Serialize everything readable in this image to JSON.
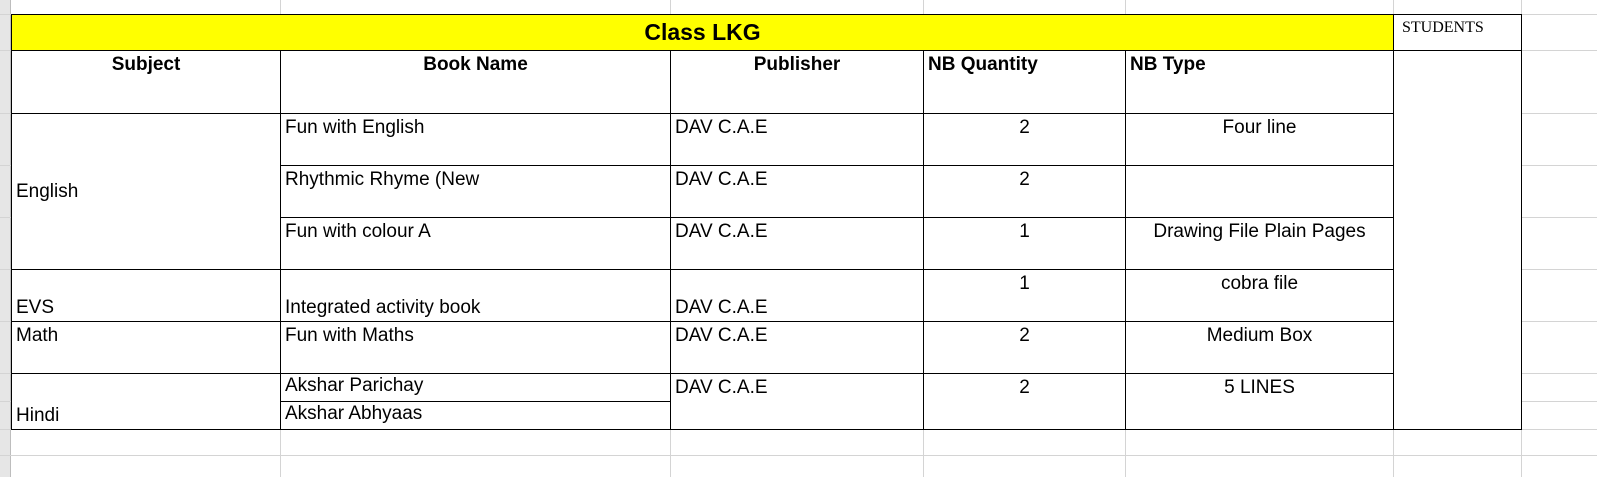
{
  "sheet": {
    "title": "Class LKG",
    "students_label": "STUDENTS",
    "title_fill": "#ffff00",
    "headers": {
      "subject": "Subject",
      "book_name": "Book Name",
      "publisher": "Publisher",
      "nb_quantity": "NB Quantity",
      "nb_type": "NB Type"
    },
    "rows": [
      {
        "subject": "English",
        "book": "Fun with English",
        "publisher": "DAV C.A.E",
        "qty": "2",
        "type": "Four line"
      },
      {
        "book": "Rhythmic Rhyme (New",
        "publisher": "DAV C.A.E",
        "qty": "2",
        "type": ""
      },
      {
        "book": "Fun with colour A",
        "publisher": "DAV C.A.E",
        "qty": "1",
        "type": "Drawing File Plain Pages"
      },
      {
        "subject": "EVS",
        "book": "Integrated activity book",
        "publisher": "DAV C.A.E",
        "qty": "1",
        "type": "cobra file"
      },
      {
        "subject": "Math",
        "book": "Fun with Maths",
        "publisher": "DAV C.A.E",
        "qty": "2",
        "type": "Medium Box"
      },
      {
        "subject": "Hindi",
        "book": "Akshar Parichay",
        "book2": "Akshar Abhyaas",
        "publisher": "DAV C.A.E",
        "qty": "2",
        "type": "5 LINES"
      }
    ]
  }
}
